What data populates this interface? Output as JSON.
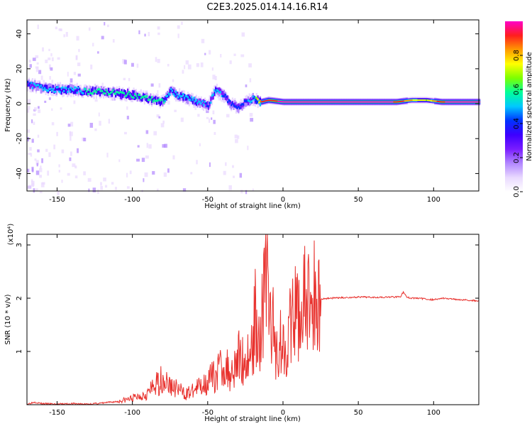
{
  "title": "C2E3.2025.014.14.16.R14",
  "colors": {
    "axis": "#000000",
    "snr_line": "#e8302c",
    "colormap": [
      "#ffffff",
      "#e9d9ff",
      "#b287ff",
      "#7a1cff",
      "#3d00ff",
      "#0032ff",
      "#00c8ff",
      "#00ff9a",
      "#7cff00",
      "#ffff00",
      "#ff9a00",
      "#ff1e1e",
      "#ff00c8"
    ]
  },
  "chart_data": [
    {
      "type": "heatmap",
      "title": "C2E3.2025.014.14.16.R14",
      "xlabel": "Height of straight line (km)",
      "ylabel": "Frequency (Hz)",
      "xlim": [
        -170,
        130
      ],
      "ylim": [
        -50,
        48
      ],
      "xticks": [
        -150,
        -100,
        -50,
        0,
        50,
        100
      ],
      "xtick_labels": [
        "-150",
        "-100",
        "-50",
        "0",
        "50",
        "100"
      ],
      "yticks": [
        -40,
        -20,
        0,
        20,
        40
      ],
      "ytick_labels": [
        "-40",
        "-20",
        "0",
        "20",
        "40"
      ],
      "colorbar": {
        "label": "Normalized spectral amplitude",
        "range": [
          0,
          1
        ],
        "ticks": [
          0.0,
          0.2,
          0.4,
          0.6,
          0.8
        ],
        "tick_labels": [
          "0.0",
          "0.2",
          "0.4",
          "0.6",
          "0.8"
        ]
      },
      "ridge": {
        "x": [
          -170,
          -160,
          -150,
          -140,
          -130,
          -120,
          -110,
          -100,
          -90,
          -80,
          -75,
          -70,
          -60,
          -50,
          -45,
          -40,
          -35,
          -30,
          -25,
          -20,
          -15,
          -10,
          0,
          10,
          20,
          40,
          60,
          75,
          85,
          95,
          105,
          120,
          130
        ],
        "y": [
          11,
          9,
          8,
          8,
          7,
          7,
          6,
          5,
          3,
          1,
          7,
          5,
          2,
          -1,
          8,
          5,
          0,
          -2,
          1,
          3,
          1,
          2,
          1,
          1,
          1,
          1,
          1,
          1,
          2,
          2,
          1,
          1,
          1
        ],
        "amplitude": [
          0.45,
          0.5,
          0.5,
          0.5,
          0.55,
          0.55,
          0.6,
          0.6,
          0.55,
          0.55,
          0.5,
          0.5,
          0.5,
          0.45,
          0.5,
          0.45,
          0.45,
          0.4,
          0.45,
          0.5,
          0.9,
          0.9,
          1.0,
          1.0,
          1.0,
          1.0,
          1.0,
          0.95,
          0.8,
          0.7,
          0.95,
          1.0,
          1.0
        ]
      }
    },
    {
      "type": "line",
      "xlabel": "Height of straight line (km)",
      "ylabel": "SNR (10 * v/v)",
      "y_multiplier": "(x10⁴)",
      "xlim": [
        -170,
        130
      ],
      "ylim": [
        0,
        3.2
      ],
      "xticks": [
        -150,
        -100,
        -50,
        0,
        50,
        100
      ],
      "xtick_labels": [
        "-150",
        "-100",
        "-50",
        "0",
        "50",
        "100"
      ],
      "yticks": [
        1,
        2,
        3
      ],
      "ytick_labels": [
        "1",
        "2",
        "3"
      ],
      "series": [
        {
          "x": [
            -170,
            -165,
            -160,
            -150,
            -140,
            -130,
            -120,
            -110,
            -100,
            -90,
            -85,
            -80,
            -75,
            -70,
            -65,
            -60,
            -55,
            -50,
            -45,
            -40,
            -35,
            -30,
            -25,
            -20,
            -18,
            -16,
            -14,
            -12,
            -11,
            -10,
            -8,
            -6,
            -4,
            -2,
            0,
            3,
            6,
            9,
            12,
            15,
            20,
            25,
            30,
            40,
            50,
            60,
            70,
            78,
            80,
            82,
            85,
            90,
            100,
            105,
            110,
            120,
            130
          ],
          "y": [
            0.01,
            0.05,
            0.02,
            0.01,
            0.02,
            0.01,
            0.03,
            0.06,
            0.12,
            0.22,
            0.35,
            0.5,
            0.35,
            0.3,
            0.2,
            0.25,
            0.35,
            0.45,
            0.55,
            0.75,
            0.6,
            0.9,
            0.8,
            1.1,
            1.8,
            1.3,
            1.6,
            2.3,
            3.1,
            1.9,
            1.6,
            1.3,
            1.0,
            1.2,
            1.1,
            1.3,
            1.5,
            1.7,
            1.8,
            1.9,
            1.95,
            1.98,
            2.0,
            2.01,
            2.02,
            2.02,
            2.02,
            2.03,
            2.12,
            2.02,
            2.0,
            2.0,
            1.97,
            2.0,
            1.99,
            1.97,
            1.95
          ]
        }
      ]
    }
  ]
}
